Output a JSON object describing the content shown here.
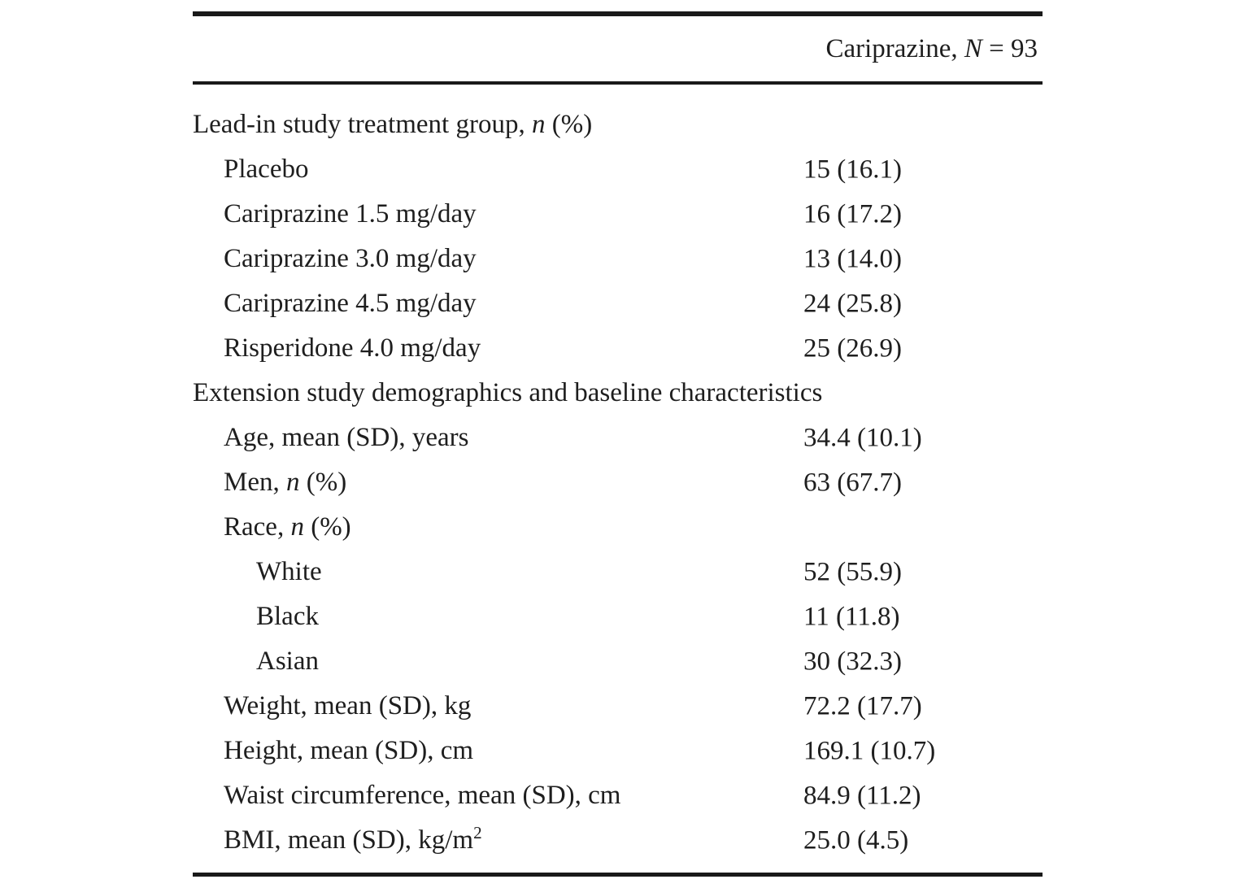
{
  "page": {
    "background_color": "#ffffff",
    "text_color": "#1e1e1e",
    "rule_color": "#191919"
  },
  "table": {
    "header_label": "Cariprazine, N = 93",
    "rows": [
      {
        "label": "Lead-in study treatment group, n (%)",
        "value": "",
        "indent": 0
      },
      {
        "label": "Placebo",
        "value": "15 (16.1)",
        "indent": 1
      },
      {
        "label": "Cariprazine 1.5 mg/day",
        "value": "16 (17.2)",
        "indent": 1
      },
      {
        "label": "Cariprazine 3.0 mg/day",
        "value": "13 (14.0)",
        "indent": 1
      },
      {
        "label": "Cariprazine 4.5 mg/day",
        "value": "24 (25.8)",
        "indent": 1
      },
      {
        "label": "Risperidone 4.0 mg/day",
        "value": "25 (26.9)",
        "indent": 1
      },
      {
        "label": "Extension study demographics and baseline characteristics",
        "value": "",
        "indent": 0
      },
      {
        "label": "Age, mean (SD), years",
        "value": "34.4 (10.1)",
        "indent": 1
      },
      {
        "label": "Men, n (%)",
        "value": "63 (67.7)",
        "indent": 1
      },
      {
        "label": "Race, n (%)",
        "value": "",
        "indent": 1
      },
      {
        "label": "White",
        "value": "52 (55.9)",
        "indent": 2
      },
      {
        "label": "Black",
        "value": "11 (11.8)",
        "indent": 2
      },
      {
        "label": "Asian",
        "value": "30 (32.3)",
        "indent": 2
      },
      {
        "label": "Weight, mean (SD), kg",
        "value": "72.2 (17.7)",
        "indent": 1
      },
      {
        "label": "Height, mean (SD), cm",
        "value": "169.1 (10.7)",
        "indent": 1
      },
      {
        "label": "Waist circumference, mean (SD), cm",
        "value": "84.9 (11.2)",
        "indent": 1
      },
      {
        "label": "BMI, mean (SD), kg/m",
        "label_sup": "2",
        "value": "25.0 (4.5)",
        "indent": 1
      }
    ]
  }
}
